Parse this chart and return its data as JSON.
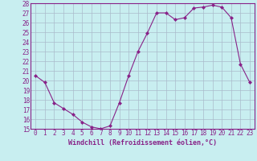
{
  "x": [
    0,
    1,
    2,
    3,
    4,
    5,
    6,
    7,
    8,
    9,
    10,
    11,
    12,
    13,
    14,
    15,
    16,
    17,
    18,
    19,
    20,
    21,
    22,
    23
  ],
  "y": [
    20.5,
    19.8,
    17.7,
    17.1,
    16.5,
    15.7,
    15.2,
    15.0,
    15.3,
    17.7,
    20.5,
    23.0,
    24.9,
    27.0,
    27.0,
    26.3,
    26.5,
    27.5,
    27.6,
    27.8,
    27.6,
    26.5,
    21.7,
    19.8
  ],
  "line_color": "#882288",
  "marker": "D",
  "marker_size": 2.0,
  "bg_color": "#c8eef0",
  "grid_color": "#aabbcc",
  "xlabel": "Windchill (Refroidissement éolien,°C)",
  "xlabel_fontsize": 6.0,
  "tick_fontsize": 5.5,
  "ylim": [
    15,
    28
  ],
  "yticks": [
    15,
    16,
    17,
    18,
    19,
    20,
    21,
    22,
    23,
    24,
    25,
    26,
    27,
    28
  ],
  "xticks": [
    0,
    1,
    2,
    3,
    4,
    5,
    6,
    7,
    8,
    9,
    10,
    11,
    12,
    13,
    14,
    15,
    16,
    17,
    18,
    19,
    20,
    21,
    22,
    23
  ],
  "xlim": [
    -0.5,
    23.5
  ],
  "text_color": "#882288",
  "spine_color": "#882288"
}
